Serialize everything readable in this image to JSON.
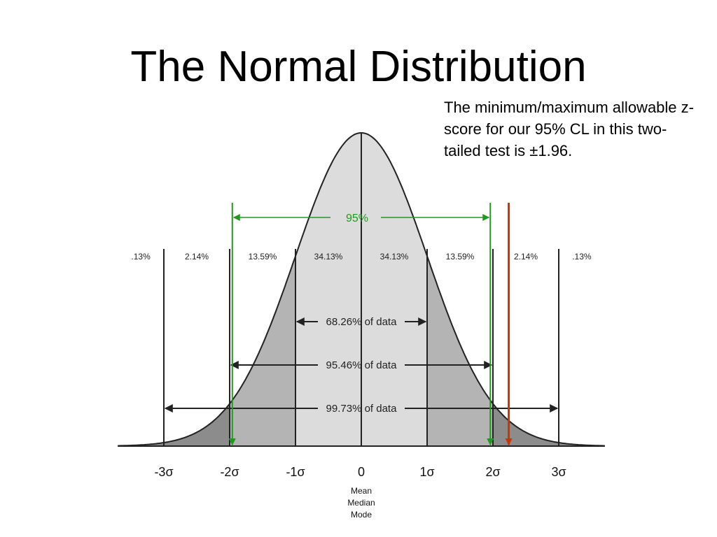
{
  "title": "The Normal Distribution",
  "note": "The minimum/maximum allowable z-score for our 95% CL in this two-tailed test is ±1.96.",
  "colors": {
    "curve_outline": "#222222",
    "band_1sd": "#dcdcdc",
    "band_2sd": "#b4b4b4",
    "band_3sd": "#8c8c8c",
    "marker_95": "#1f9a1f",
    "marker_red": "#cc3300"
  },
  "bands": [
    {
      "label": ".13%",
      "from": -3.8,
      "to": -3
    },
    {
      "label": "2.14%",
      "from": -3,
      "to": -2
    },
    {
      "label": "13.59%",
      "from": -2,
      "to": -1
    },
    {
      "label": "34.13%",
      "from": -1,
      "to": 0
    },
    {
      "label": "34.13%",
      "from": 0,
      "to": 1
    },
    {
      "label": "13.59%",
      "from": 1,
      "to": 2
    },
    {
      "label": "2.14%",
      "from": 2,
      "to": 3
    },
    {
      "label": ".13%",
      "from": 3,
      "to": 3.8
    }
  ],
  "ticks": [
    "-3σ",
    "-2σ",
    "-1σ",
    "0",
    "1σ",
    "2σ",
    "3σ"
  ],
  "tick_values": [
    -3,
    -2,
    -1,
    0,
    1,
    2,
    3
  ],
  "ranges": [
    {
      "label": "68.26% of data",
      "sigma": 1
    },
    {
      "label": "95.46% of data",
      "sigma": 2
    },
    {
      "label": "99.73% of data",
      "sigma": 3
    }
  ],
  "ci95": {
    "label": "95%",
    "z": 1.96
  },
  "red_marker_z": 2.24,
  "center_label": [
    "Mean",
    "Median",
    "Mode"
  ]
}
